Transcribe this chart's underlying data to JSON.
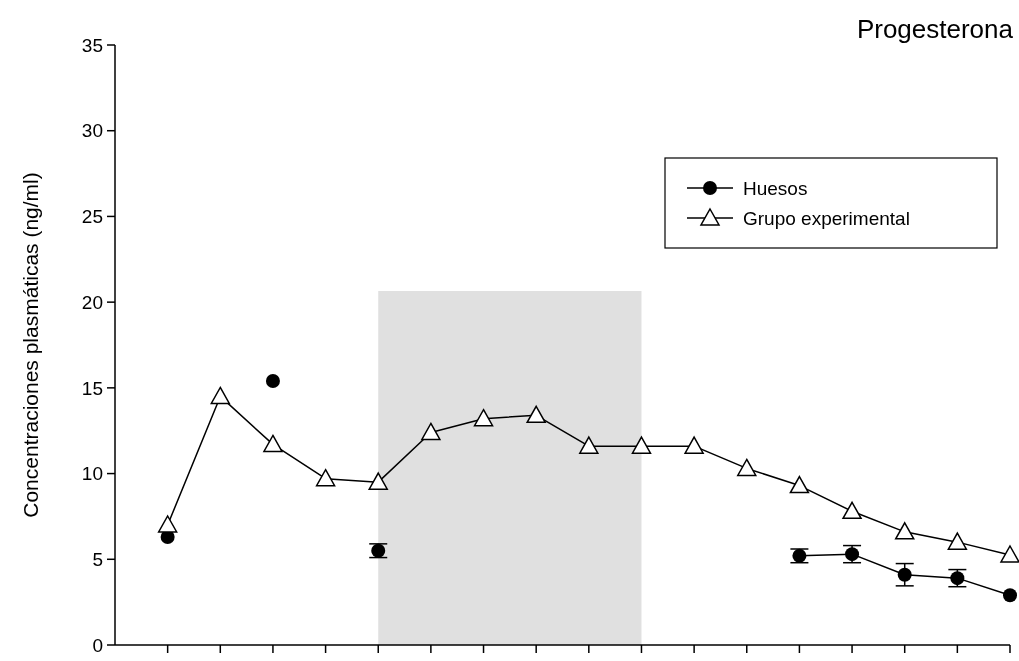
{
  "chart_data": {
    "type": "line",
    "title": "Progesterona",
    "ylabel": "Concentraciones plasmáticas (ng/ml)",
    "categories": [
      null,
      null,
      null,
      null,
      null,
      null,
      null,
      null,
      null,
      null,
      null,
      null,
      null,
      null,
      null,
      null,
      null
    ],
    "ylim": [
      0,
      35
    ],
    "yticks": [
      0,
      5,
      10,
      15,
      20,
      25,
      30,
      35
    ],
    "tick_labels": "y",
    "grid": false,
    "legend": "top right",
    "series": [
      {
        "name": "Huesos",
        "color": "#000000",
        "marker": "circle",
        "values": [
          6.3,
          null,
          15.4,
          null,
          5.5,
          null,
          null,
          null,
          null,
          null,
          null,
          null,
          5.2,
          5.3,
          4.1,
          3.9,
          2.9
        ],
        "errors": [
          null,
          null,
          null,
          null,
          0.4,
          null,
          null,
          null,
          null,
          null,
          null,
          null,
          0.4,
          0.5,
          0.65,
          0.5,
          null
        ]
      },
      {
        "name": "Grupo experimental",
        "color": "#000000",
        "marker": "triangle",
        "values": [
          7.0,
          14.5,
          11.7,
          9.7,
          9.5,
          12.4,
          13.2,
          13.4,
          11.6,
          11.6,
          11.6,
          10.3,
          9.3,
          7.8,
          6.6,
          6.0,
          5.25
        ]
      }
    ]
  }
}
